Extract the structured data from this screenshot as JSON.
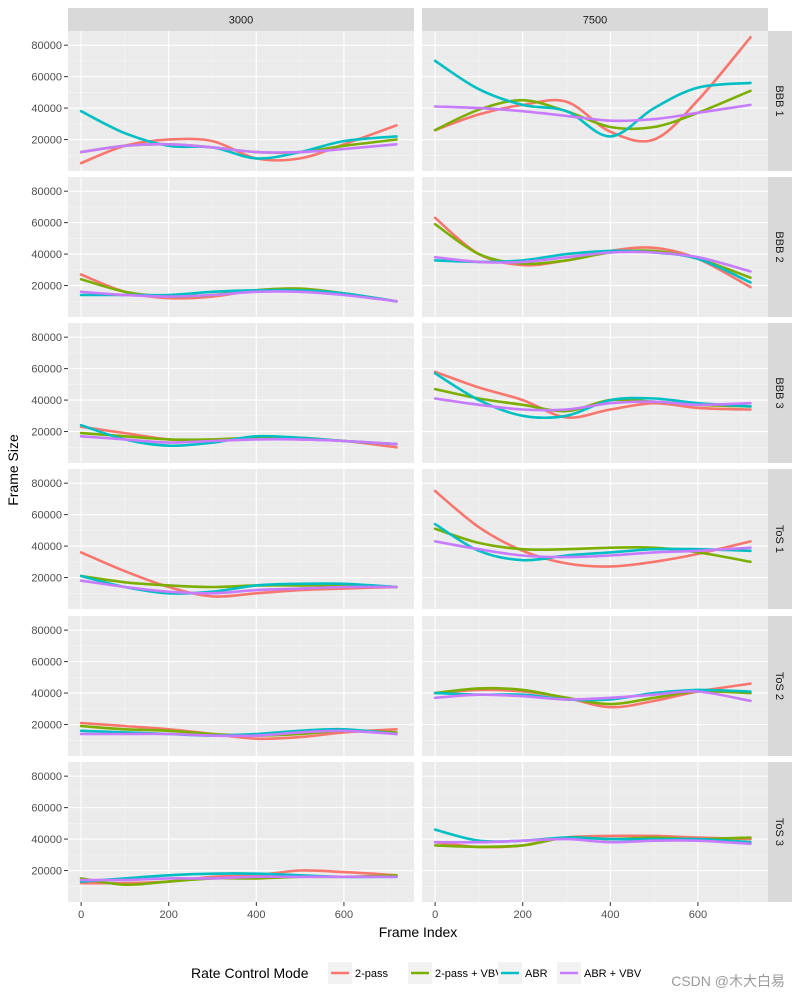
{
  "chart_data": {
    "type": "line",
    "title": "",
    "xlabel": "Frame Index",
    "ylabel": "Frame Size",
    "xlim": [
      -30,
      760
    ],
    "ylim": [
      0,
      89000
    ],
    "xticks": [
      0,
      200,
      400,
      600
    ],
    "xtick_labels": [
      "0",
      "200",
      "400",
      "600"
    ],
    "yticks": [
      20000,
      40000,
      60000,
      80000
    ],
    "ytick_labels": [
      "20000",
      "40000",
      "60000",
      "80000"
    ],
    "grid": true,
    "column_facets": [
      "3000",
      "7500"
    ],
    "row_facets": [
      "BBB 1",
      "BBB 2",
      "BBB 3",
      "ToS 1",
      "ToS 2",
      "ToS 3"
    ],
    "legend": {
      "title": "Rate Control Mode",
      "position": "bottom",
      "entries": [
        {
          "name": "2-pass",
          "color": "#F8766D"
        },
        {
          "name": "2-pass + VBV",
          "color": "#7CAE00"
        },
        {
          "name": "ABR",
          "color": "#00BFC4"
        },
        {
          "name": "ABR + VBV",
          "color": "#C77CFF"
        }
      ]
    },
    "x": [
      0,
      100,
      200,
      300,
      400,
      500,
      600,
      720
    ],
    "panels": [
      {
        "row": "BBB 1",
        "col": "3000",
        "series": {
          "2-pass": [
            5000,
            16000,
            20000,
            19000,
            8000,
            8000,
            17000,
            29000
          ],
          "2-pass + VBV": [
            12000,
            16000,
            17000,
            15000,
            12000,
            12000,
            16000,
            20000
          ],
          "ABR": [
            38000,
            24000,
            16000,
            15000,
            8000,
            12000,
            19000,
            22000
          ],
          "ABR + VBV": [
            12000,
            16000,
            17000,
            15000,
            12000,
            12000,
            14000,
            17000
          ]
        }
      },
      {
        "row": "BBB 1",
        "col": "7500",
        "series": {
          "2-pass": [
            26000,
            36000,
            42000,
            44000,
            25000,
            20000,
            45000,
            85000
          ],
          "2-pass + VBV": [
            26000,
            39000,
            45000,
            38000,
            28000,
            28000,
            37000,
            51000
          ],
          "ABR": [
            70000,
            52000,
            42000,
            38000,
            22000,
            40000,
            53000,
            56000
          ],
          "ABR + VBV": [
            41000,
            40000,
            38000,
            35000,
            32000,
            33000,
            37000,
            42000
          ]
        }
      },
      {
        "row": "BBB 2",
        "col": "3000",
        "series": {
          "2-pass": [
            27000,
            16000,
            12000,
            13000,
            17000,
            18000,
            15000,
            10000
          ],
          "2-pass + VBV": [
            24000,
            16000,
            13000,
            14000,
            17000,
            18000,
            15000,
            10000
          ],
          "ABR": [
            14000,
            14000,
            14000,
            16000,
            17000,
            17000,
            15000,
            10000
          ],
          "ABR + VBV": [
            16000,
            14000,
            13000,
            14000,
            16000,
            16000,
            14000,
            10000
          ]
        }
      },
      {
        "row": "BBB 2",
        "col": "7500",
        "series": {
          "2-pass": [
            63000,
            40000,
            33000,
            36000,
            42000,
            44000,
            37000,
            19000
          ],
          "2-pass + VBV": [
            59000,
            40000,
            34000,
            36000,
            41000,
            42000,
            37000,
            25000
          ],
          "ABR": [
            36000,
            35000,
            36000,
            40000,
            42000,
            41000,
            37000,
            22000
          ],
          "ABR + VBV": [
            38000,
            35000,
            35000,
            38000,
            41000,
            41000,
            38000,
            29000
          ]
        }
      },
      {
        "row": "BBB 3",
        "col": "3000",
        "series": {
          "2-pass": [
            23000,
            19000,
            15000,
            14000,
            16000,
            15000,
            14000,
            10000
          ],
          "2-pass + VBV": [
            19000,
            17000,
            15000,
            15000,
            16000,
            16000,
            14000,
            12000
          ],
          "ABR": [
            24000,
            15000,
            11000,
            13000,
            17000,
            16000,
            14000,
            12000
          ],
          "ABR + VBV": [
            17000,
            15000,
            13000,
            14000,
            15000,
            15000,
            14000,
            12000
          ]
        }
      },
      {
        "row": "BBB 3",
        "col": "7500",
        "series": {
          "2-pass": [
            58000,
            48000,
            40000,
            29000,
            34000,
            38000,
            35000,
            34000
          ],
          "2-pass + VBV": [
            47000,
            41000,
            37000,
            33000,
            40000,
            39000,
            37000,
            36000
          ],
          "ABR": [
            57000,
            40000,
            30000,
            30000,
            40000,
            41000,
            38000,
            36000
          ],
          "ABR + VBV": [
            41000,
            37000,
            34000,
            34000,
            38000,
            39000,
            37000,
            38000
          ]
        }
      },
      {
        "row": "ToS 1",
        "col": "3000",
        "series": {
          "2-pass": [
            36000,
            24000,
            14000,
            8000,
            10000,
            12000,
            13000,
            14000
          ],
          "2-pass + VBV": [
            21000,
            17000,
            15000,
            14000,
            15000,
            15000,
            15000,
            14000
          ],
          "ABR": [
            21000,
            14000,
            10000,
            11000,
            15000,
            16000,
            16000,
            14000
          ],
          "ABR + VBV": [
            18000,
            14000,
            11000,
            10000,
            12000,
            13000,
            14000,
            14000
          ]
        }
      },
      {
        "row": "ToS 1",
        "col": "7500",
        "series": {
          "2-pass": [
            75000,
            52000,
            37000,
            29000,
            27000,
            30000,
            35000,
            43000
          ],
          "2-pass + VBV": [
            51000,
            42000,
            38000,
            38000,
            39000,
            39000,
            36000,
            30000
          ],
          "ABR": [
            54000,
            37000,
            31000,
            34000,
            36000,
            38000,
            38000,
            37000
          ],
          "ABR + VBV": [
            43000,
            38000,
            34000,
            33000,
            34000,
            36000,
            37000,
            39000
          ]
        }
      },
      {
        "row": "ToS 2",
        "col": "3000",
        "series": {
          "2-pass": [
            21000,
            19000,
            17000,
            14000,
            11000,
            12000,
            15000,
            17000
          ],
          "2-pass + VBV": [
            19000,
            17000,
            16000,
            14000,
            13000,
            14000,
            16000,
            15000
          ],
          "ABR": [
            16000,
            15000,
            14000,
            13000,
            14000,
            16000,
            17000,
            14000
          ],
          "ABR + VBV": [
            14000,
            14000,
            14000,
            13000,
            13000,
            15000,
            16000,
            14000
          ]
        }
      },
      {
        "row": "ToS 2",
        "col": "7500",
        "series": {
          "2-pass": [
            40000,
            42000,
            41000,
            37000,
            31000,
            35000,
            41000,
            46000
          ],
          "2-pass + VBV": [
            40000,
            43000,
            42000,
            37000,
            33000,
            37000,
            41000,
            40000
          ],
          "ABR": [
            40000,
            39000,
            39000,
            36000,
            36000,
            40000,
            42000,
            41000
          ],
          "ABR + VBV": [
            37000,
            39000,
            38000,
            36000,
            37000,
            39000,
            41000,
            35000
          ]
        }
      },
      {
        "row": "ToS 3",
        "col": "3000",
        "series": {
          "2-pass": [
            12000,
            12000,
            13000,
            16000,
            17000,
            20000,
            19000,
            17000
          ],
          "2-pass + VBV": [
            15000,
            11000,
            13000,
            15000,
            15000,
            16000,
            16000,
            17000
          ],
          "ABR": [
            13000,
            15000,
            17000,
            18000,
            18000,
            17000,
            16000,
            16000
          ],
          "ABR + VBV": [
            14000,
            14000,
            15000,
            15000,
            16000,
            16000,
            16000,
            16000
          ]
        }
      },
      {
        "row": "ToS 3",
        "col": "7500",
        "series": {
          "2-pass": [
            38000,
            35000,
            36000,
            41000,
            42000,
            42000,
            41000,
            40000
          ],
          "2-pass + VBV": [
            36000,
            35000,
            36000,
            41000,
            40000,
            41000,
            40000,
            41000
          ],
          "ABR": [
            46000,
            39000,
            39000,
            41000,
            40000,
            40000,
            40000,
            38000
          ],
          "ABR + VBV": [
            38000,
            38000,
            39000,
            40000,
            38000,
            39000,
            39000,
            37000
          ]
        }
      }
    ]
  },
  "watermark": "CSDN @木大白易"
}
